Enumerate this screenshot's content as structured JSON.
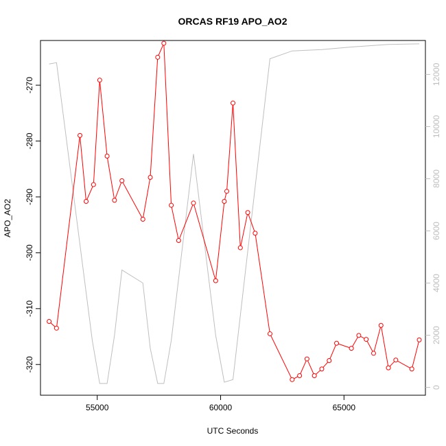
{
  "chart_data": {
    "type": "line",
    "title": "ORCAS RF19 APO_AO2",
    "xlabel": "UTC Seconds",
    "ylabel": "APO_AO2",
    "xlim": [
      52700,
      68300
    ],
    "ylim": [
      -325.5,
      -262
    ],
    "y2lim": [
      -300,
      13300
    ],
    "x_ticks": [
      55000,
      60000,
      65000
    ],
    "y_ticks": [
      -320,
      -310,
      -300,
      -290,
      -280,
      -270
    ],
    "y2_ticks": [
      0,
      2000,
      4000,
      6000,
      8000,
      10000,
      12000
    ],
    "series": [
      {
        "role": "primary",
        "color": "#ff0000",
        "markers": "open-circle",
        "x": [
          53050,
          53350,
          54300,
          54550,
          54850,
          55100,
          55400,
          55700,
          56000,
          56850,
          57150,
          57450,
          57700,
          58000,
          58300,
          58900,
          59800,
          60150,
          60250,
          60500,
          60800,
          61100,
          61400,
          62000,
          62900,
          63200,
          63500,
          63800,
          64100,
          64400,
          64700,
          65300,
          65600,
          65900,
          66200,
          66500,
          66800,
          67100,
          67750,
          68050
        ],
        "y": [
          -312.3,
          -313.5,
          -279.0,
          -290.8,
          -287.8,
          -269.1,
          -282.7,
          -290.6,
          -287.1,
          -294.0,
          -286.5,
          -265.0,
          -262.5,
          -291.5,
          -297.8,
          -291.1,
          -305.0,
          -290.8,
          -289.0,
          -273.2,
          -299.1,
          -292.8,
          -296.5,
          -314.5,
          -322.7,
          -322.0,
          -319.0,
          -322.0,
          -320.8,
          -319.3,
          -316.2,
          -317.1,
          -314.8,
          -315.5,
          -318.0,
          -313.0,
          -320.6,
          -319.2,
          -320.8,
          -315.6
        ]
      },
      {
        "role": "secondary",
        "color": "#bebebe",
        "markers": "none",
        "x": [
          53050,
          53350,
          54800,
          55100,
          55400,
          55700,
          56000,
          56850,
          57150,
          57450,
          57700,
          58000,
          58900,
          59800,
          60150,
          60500,
          62000,
          62900,
          64100,
          65300,
          66800,
          68050
        ],
        "y": [
          12400,
          12450,
          1800,
          150,
          150,
          2000,
          4500,
          4000,
          1500,
          150,
          150,
          1800,
          8950,
          2000,
          200,
          300,
          12600,
          12900,
          12950,
          13050,
          13150,
          13170
        ]
      }
    ]
  }
}
